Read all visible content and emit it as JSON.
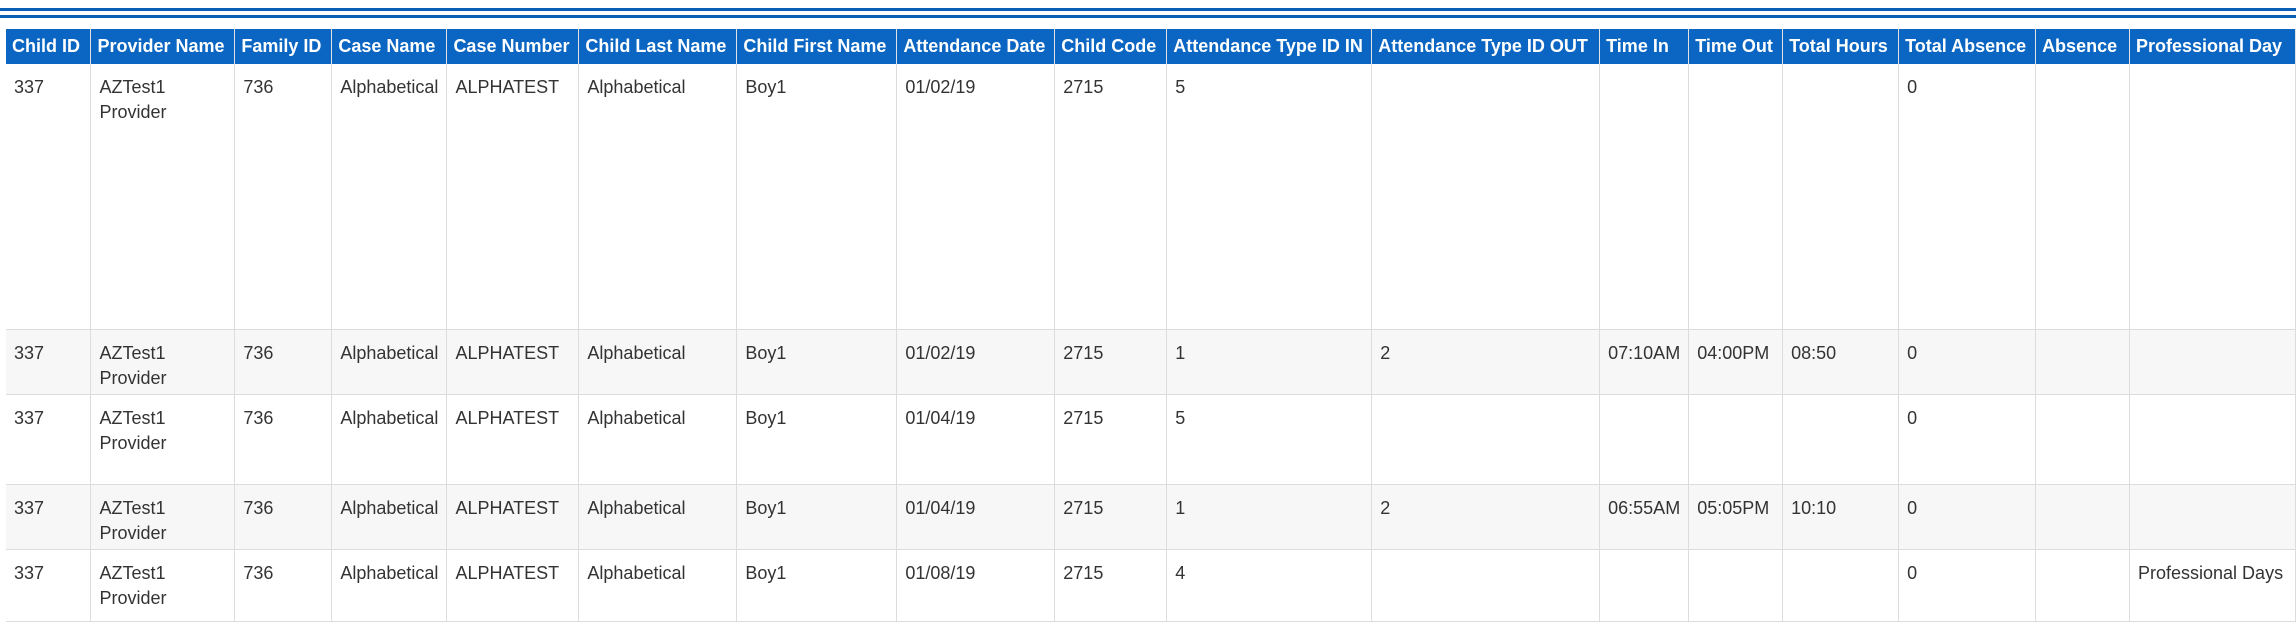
{
  "columns": [
    "Child ID",
    "Provider Name",
    "Family ID",
    "Case Name",
    "Case Number",
    "Child Last Name",
    "Child First Name",
    "Attendance Date",
    "Child Code",
    "Attendance Type ID IN",
    "Attendance Type ID OUT",
    "Time In",
    "Time Out",
    "Total Hours",
    "Total Absence",
    "Absence",
    "Professional Day"
  ],
  "rows": [
    [
      "337",
      "AZTest1 Provider",
      "736",
      "Alphabetical",
      "ALPHATEST",
      "Alphabetical",
      "Boy1",
      "01/02/19",
      "2715",
      "5",
      "",
      "",
      "",
      "",
      "0",
      "",
      ""
    ],
    [
      "337",
      "AZTest1 Provider",
      "736",
      "Alphabetical",
      "ALPHATEST",
      "Alphabetical",
      "Boy1",
      "01/02/19",
      "2715",
      "1",
      "2",
      "07:10AM",
      "04:00PM",
      "08:50",
      "0",
      "",
      ""
    ],
    [
      "337",
      "AZTest1 Provider",
      "736",
      "Alphabetical",
      "ALPHATEST",
      "Alphabetical",
      "Boy1",
      "01/04/19",
      "2715",
      "5",
      "",
      "",
      "",
      "",
      "0",
      "",
      ""
    ],
    [
      "337",
      "AZTest1 Provider",
      "736",
      "Alphabetical",
      "ALPHATEST",
      "Alphabetical",
      "Boy1",
      "01/04/19",
      "2715",
      "1",
      "2",
      "06:55AM",
      "05:05PM",
      "10:10",
      "0",
      "",
      ""
    ],
    [
      "337",
      "AZTest1 Provider",
      "736",
      "Alphabetical",
      "ALPHATEST",
      "Alphabetical",
      "Boy1",
      "01/08/19",
      "2715",
      "4",
      "",
      "",
      "",
      "",
      "0",
      "",
      "Professional Days"
    ]
  ],
  "colors": {
    "header_bg": "#0a66c2",
    "header_text": "#ffffff",
    "rule": "#0a5fb4",
    "row_alt": "#f7f7f7"
  }
}
